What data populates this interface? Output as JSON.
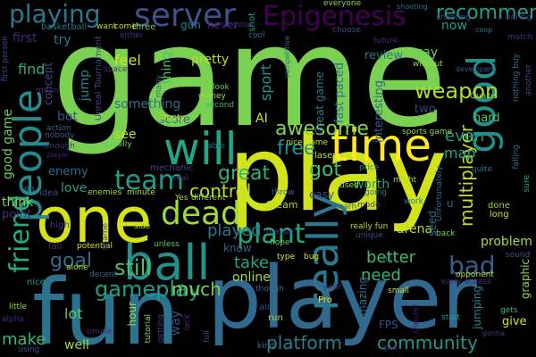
{
  "cloud": {
    "words": [
      {
        "t": "game",
        "c": "#7ad151"
      },
      {
        "t": "play",
        "c": "#d2e21b"
      },
      {
        "t": "fun",
        "c": "#2c728e"
      },
      {
        "t": "player",
        "c": "#31688e"
      },
      {
        "t": "one",
        "c": "#d7e219"
      },
      {
        "t": "people",
        "c": "#238a8d"
      },
      {
        "t": "will",
        "c": "#21a685"
      },
      {
        "t": "time",
        "c": "#fde725"
      },
      {
        "t": "good",
        "c": "#20928c"
      },
      {
        "t": "really",
        "c": "#2a788e"
      },
      {
        "t": "ball",
        "c": "#21918c"
      },
      {
        "t": "server",
        "c": "#3b528b"
      },
      {
        "t": "playing",
        "c": "#2a788e"
      },
      {
        "t": "Epigenesis",
        "c": "#440154"
      },
      {
        "t": "friend",
        "c": "#25ab82"
      },
      {
        "t": "dead",
        "c": "#a2da37"
      },
      {
        "t": "team",
        "c": "#1e9d89"
      },
      {
        "t": "gameplay",
        "c": "#1f9e89"
      },
      {
        "t": "bad",
        "c": "#355f8d"
      },
      {
        "t": "much",
        "c": "#7ad151"
      },
      {
        "t": "recommend",
        "c": "#1fa187"
      },
      {
        "t": "weapon",
        "c": "#addc30"
      },
      {
        "t": "great",
        "c": "#2db27d"
      },
      {
        "t": "plant",
        "c": "#22a884"
      },
      {
        "t": "free",
        "c": "#21918c"
      },
      {
        "t": "awesome",
        "c": "#86d549"
      },
      {
        "t": "control",
        "c": "#bddf26"
      },
      {
        "t": "got",
        "c": "#46c06f"
      },
      {
        "t": "still",
        "c": "#4ac16d"
      },
      {
        "t": "community",
        "c": "#1f968b"
      },
      {
        "t": "platform",
        "c": "#26828e"
      },
      {
        "t": "take",
        "c": "#22a884"
      },
      {
        "t": "played",
        "c": "#2a788e"
      },
      {
        "t": "multiplayer",
        "c": "#bddf26"
      },
      {
        "t": "even",
        "c": "#1f9a8a"
      },
      {
        "t": "goal",
        "c": "#2e6e8e"
      },
      {
        "t": "make",
        "c": "#35b779"
      },
      {
        "t": "lot",
        "c": "#5ec962"
      },
      {
        "t": "need",
        "c": "#32b67a"
      },
      {
        "t": "better",
        "c": "#3fbc73"
      },
      {
        "t": "online",
        "c": "#a5db36"
      },
      {
        "t": "map",
        "c": "#21a585"
      },
      {
        "t": "problem",
        "c": "#a8db34"
      },
      {
        "t": "arena",
        "c": "#bddf26"
      },
      {
        "t": "worth",
        "c": "#21a685"
      },
      {
        "t": "sport",
        "c": "#1f958b"
      },
      {
        "t": "feel",
        "c": "#d8e219"
      },
      {
        "t": "find",
        "c": "#29af7f"
      },
      {
        "t": "love",
        "c": "#1fa188"
      },
      {
        "t": "jump",
        "c": "#25848e"
      },
      {
        "t": "thing",
        "c": "#48c16e"
      },
      {
        "t": "pretty",
        "c": "#b8de29"
      },
      {
        "t": "something",
        "c": "#2e6f8e"
      },
      {
        "t": "score",
        "c": "#2d708e"
      },
      {
        "t": "see",
        "c": "#c2df23"
      },
      {
        "t": "AI",
        "c": "#d2e21b"
      },
      {
        "t": "hard",
        "c": "#52c569"
      },
      {
        "t": "now",
        "c": "#1f9e89"
      },
      {
        "t": "two",
        "c": "#433e85"
      },
      {
        "t": "say",
        "c": "#6ccd5a"
      },
      {
        "t": "review",
        "c": "#2a788e"
      },
      {
        "t": "first",
        "c": "#482576"
      },
      {
        "t": "try",
        "c": "#287d8e"
      },
      {
        "t": "bot",
        "c": "#39558c"
      },
      {
        "t": "concept",
        "c": "#3e4a89"
      },
      {
        "t": "fast paced",
        "c": "#2c718e"
      },
      {
        "t": "Great game",
        "c": "#2a788e"
      },
      {
        "t": "interesting",
        "c": "#32658e"
      },
      {
        "t": "good game",
        "c": "#6ece58"
      },
      {
        "t": "enemy",
        "c": "#2f6c8e"
      },
      {
        "t": "think",
        "c": "#7fd34e"
      },
      {
        "t": "point",
        "c": "#472f7d"
      },
      {
        "t": "well",
        "c": "#9fda3a"
      },
      {
        "t": "way",
        "c": "#3e4c8a"
      },
      {
        "t": "hour",
        "c": "#a0da39"
      },
      {
        "t": "amazing",
        "c": "#2e6f8e"
      },
      {
        "t": "FPS",
        "c": "#3d4d8a"
      },
      {
        "t": "give",
        "c": "#d0e11c"
      },
      {
        "t": "jumping",
        "c": "#24868e"
      },
      {
        "t": "seed",
        "c": "#2e6e8e"
      },
      {
        "t": "Steam",
        "c": "#b5de2b"
      },
      {
        "t": "graphic",
        "c": "#93d741"
      },
      {
        "t": "know",
        "c": "#32648e"
      },
      {
        "t": "gun",
        "c": "#287c8e"
      },
      {
        "t": "never",
        "c": "#482173"
      },
      {
        "t": "shot",
        "c": "#1f9f88"
      },
      {
        "t": "three",
        "c": "#6ccd5a"
      },
      {
        "t": "want",
        "c": "#b0dd2f"
      },
      {
        "t": "come",
        "c": "#c0df25"
      },
      {
        "t": "basketball",
        "c": "#2a788e"
      },
      {
        "t": "Unreal Tournament",
        "c": "#3f4788"
      },
      {
        "t": "sports game",
        "c": "#98d83e"
      },
      {
        "t": "laser",
        "c": "#bddf26"
      },
      {
        "t": "nice game",
        "c": "#c8e020"
      },
      {
        "t": "mechanic",
        "c": "#3f4889"
      },
      {
        "t": "enemies",
        "c": "#a2da37"
      },
      {
        "t": "minute",
        "c": "#b5de2b"
      },
      {
        "t": "real",
        "c": "#46327e"
      },
      {
        "t": "able",
        "c": "#2c718e"
      },
      {
        "t": "idea",
        "c": "#3b528b"
      },
      {
        "t": "high",
        "c": "#433d84"
      },
      {
        "t": "fall",
        "c": "#472d7b"
      },
      {
        "t": "potential",
        "c": "#d0e11c"
      },
      {
        "t": "shame",
        "c": "#3f4788"
      },
      {
        "t": "unless",
        "c": "#5cc863"
      },
      {
        "t": "side",
        "c": "#b8de29"
      },
      {
        "t": "Yes",
        "c": "#a8db34"
      },
      {
        "t": "different",
        "c": "#89d548"
      },
      {
        "t": "throw",
        "c": "#31678e"
      },
      {
        "t": "easy",
        "c": "#3b528b"
      },
      {
        "t": "maybe",
        "c": "#3f4788"
      },
      {
        "t": "hope",
        "c": "#75d054"
      },
      {
        "t": "type",
        "c": "#dde318"
      },
      {
        "t": "bug",
        "c": "#d8e219"
      },
      {
        "t": "Pro",
        "c": "#efe51c"
      },
      {
        "t": "air",
        "c": "#3d4e8a"
      },
      {
        "t": "run",
        "c": "#a2da37"
      },
      {
        "t": "kind",
        "c": "#2d708e"
      },
      {
        "t": "full",
        "c": "#3e4989"
      },
      {
        "t": "start",
        "c": "#1f998a"
      },
      {
        "t": "put",
        "c": "#46337f"
      },
      {
        "t": "shooter",
        "c": "#471365"
      },
      {
        "t": "gets",
        "c": "#37b878"
      },
      {
        "t": "back",
        "c": "#7fd34e"
      },
      {
        "t": "done",
        "c": "#8bd646"
      },
      {
        "t": "long",
        "c": "#cde11d"
      },
      {
        "t": "price",
        "c": "#23898e"
      },
      {
        "t": "quite",
        "c": "#2c728e"
      },
      {
        "t": "mode",
        "c": "#3f4788"
      },
      {
        "t": "work",
        "c": "#25848e"
      },
      {
        "t": "going",
        "c": "#2d708e"
      },
      {
        "t": "might",
        "c": "#addc30"
      },
      {
        "t": "u",
        "c": "#2d708e"
      },
      {
        "t": "future",
        "c": "#482878"
      },
      {
        "t": "without",
        "c": "#90d743"
      },
      {
        "t": "Quake",
        "c": "#93d741"
      },
      {
        "t": "shooting",
        "c": "#3e4a89"
      },
      {
        "t": "boring",
        "c": "#472f7d"
      },
      {
        "t": "match",
        "c": "#472e7c"
      },
      {
        "t": "another",
        "c": "#404588"
      },
      {
        "t": "nothing buy",
        "c": "#2c718e"
      },
      {
        "t": "developers",
        "c": "#39558c"
      },
      {
        "t": "coop",
        "c": "#2b748e"
      },
      {
        "t": "sure",
        "c": "#22a884"
      },
      {
        "t": "Unfortunately",
        "c": "#306a8e"
      },
      {
        "t": "falling",
        "c": "#2e6e8e"
      },
      {
        "t": "opponent",
        "c": "#b2dd2d"
      },
      {
        "t": "sound",
        "c": "#3b528b"
      },
      {
        "t": "early access",
        "c": "#46327e"
      },
      {
        "t": "small",
        "c": "#b5de2b"
      },
      {
        "t": "nice",
        "c": "#1f9f88"
      },
      {
        "t": "alone",
        "c": "#b8de29"
      },
      {
        "t": "decent",
        "c": "#31688e"
      },
      {
        "t": "alpha",
        "c": "#482475"
      },
      {
        "t": "simple",
        "c": "#482677"
      },
      {
        "t": "using",
        "c": "#3b528b"
      },
      {
        "t": "tutorial",
        "c": "#94d840"
      },
      {
        "t": "getting",
        "c": "#453581"
      },
      {
        "t": "though",
        "c": "#30698e"
      },
      {
        "t": "year",
        "c": "#472d7b"
      },
      {
        "t": "lack",
        "c": "#482979"
      },
      {
        "t": "really fun",
        "c": "#b5de2b"
      },
      {
        "t": "used",
        "c": "#a8db34"
      },
      {
        "t": "Learn",
        "c": "#31678e"
      },
      {
        "t": "everyone",
        "c": "#8fd744"
      },
      {
        "t": "shooting",
        "c": "#2a788e"
      },
      {
        "t": "anyone",
        "c": "#472c7a"
      },
      {
        "t": "cool",
        "c": "#2e6e8e"
      },
      {
        "t": "competitive",
        "c": "#2c718e"
      },
      {
        "t": "choose",
        "c": "#3e4a89"
      },
      {
        "t": "either",
        "c": "#453882"
      },
      {
        "t": "many",
        "c": "#2c718e"
      },
      {
        "t": "space",
        "c": "#46337f"
      },
      {
        "t": "money",
        "c": "#a0da39"
      },
      {
        "t": "look",
        "c": "#5ec962"
      },
      {
        "t": "second",
        "c": "#37b878"
      },
      {
        "t": "empty",
        "c": "#c8e020"
      },
      {
        "t": "actually",
        "c": "#6ccd5a"
      },
      {
        "t": "action",
        "c": "#30698e"
      },
      {
        "t": "nobody",
        "c": "#3a548c"
      },
      {
        "t": "enough",
        "c": "#453882"
      },
      {
        "t": "first person",
        "c": "#3f4788"
      },
      {
        "t": "mean",
        "c": "#482878"
      },
      {
        "t": "unique",
        "c": "#3d4d8a"
      },
      {
        "t": "h1",
        "c": "#30698e"
      },
      {
        "t": "player",
        "c": "#482173"
      },
      {
        "t": "con",
        "c": "#2a788e"
      },
      {
        "t": "little",
        "c": "#8fd744"
      },
      {
        "t": "gonna",
        "c": "#453882"
      }
    ]
  }
}
